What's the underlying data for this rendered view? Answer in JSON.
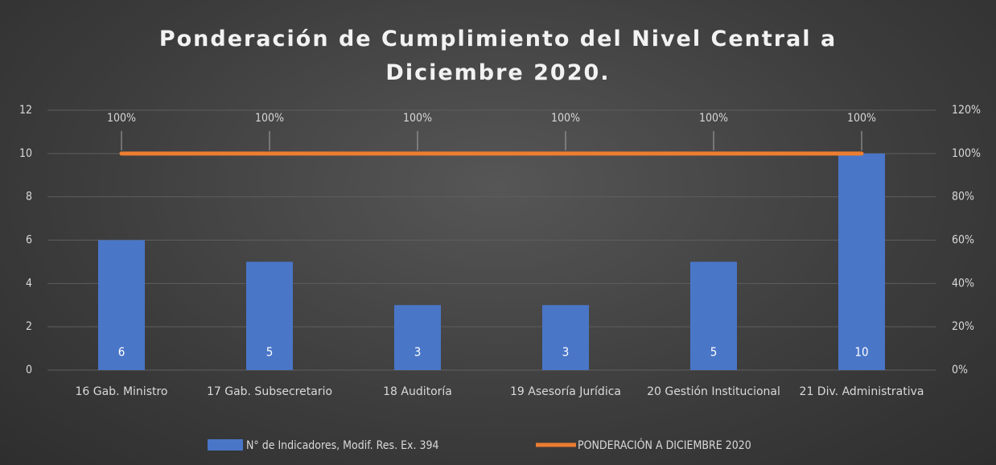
{
  "chart_data": {
    "type": "bar",
    "title": "Ponderación de Cumplimiento del Nivel Central a Diciembre 2020.",
    "categories": [
      "16 Gab. Ministro",
      "17 Gab. Subsecretario",
      "18 Auditoría",
      "19 Asesoría Jurídica",
      "20 Gestión Institucional",
      "21 Div. Administrativa"
    ],
    "series": [
      {
        "name": "N° de Indicadores, Modif. Res. Ex. 394",
        "type": "bar",
        "color": "#4a76c8",
        "values": [
          6,
          5,
          3,
          3,
          5,
          10
        ]
      },
      {
        "name": "PONDERACIÓN A DICIEMBRE 2020",
        "type": "line",
        "axis": "y2",
        "color": "#ed7d31",
        "values": [
          100,
          100,
          100,
          100,
          100,
          100
        ],
        "value_labels": [
          "100%",
          "100%",
          "100%",
          "100%",
          "100%",
          "100%"
        ]
      }
    ],
    "ylim": [
      0,
      12
    ],
    "yticks": [
      0,
      2,
      4,
      6,
      8,
      10,
      12
    ],
    "y2lim": [
      0,
      120
    ],
    "y2ticks": [
      {
        "value": 0,
        "label": "0%"
      },
      {
        "value": 20,
        "label": "20%"
      },
      {
        "value": 40,
        "label": "40%"
      },
      {
        "value": 60,
        "label": "60%"
      },
      {
        "value": 80,
        "label": "80%"
      },
      {
        "value": 100,
        "label": "100%"
      },
      {
        "value": 120,
        "label": "120%"
      }
    ],
    "grid": true,
    "legend": "bottom"
  }
}
